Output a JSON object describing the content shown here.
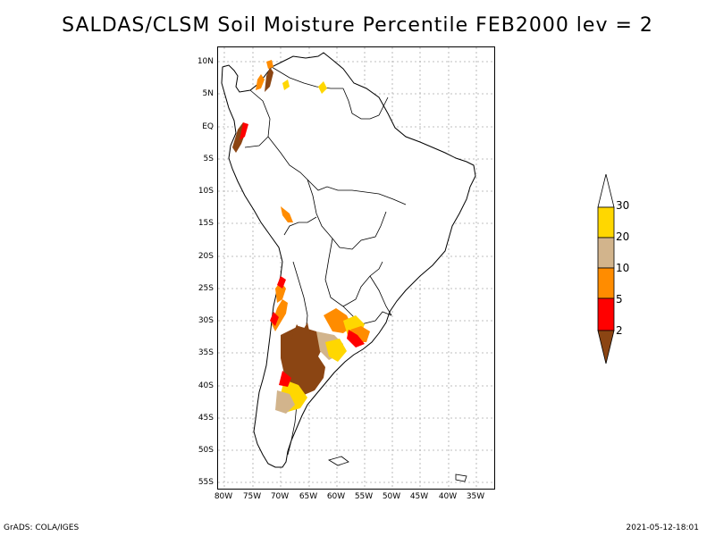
{
  "title": "SALDAS/CLSM Soil Moisture Percentile FEB2000 lev = 2",
  "latitude_labels": [
    "10N",
    "5N",
    "EQ",
    "5S",
    "10S",
    "15S",
    "20S",
    "25S",
    "30S",
    "35S",
    "40S",
    "45S",
    "50S",
    "55S"
  ],
  "longitude_labels": [
    "80W",
    "75W",
    "70W",
    "65W",
    "60W",
    "55W",
    "50W",
    "45W",
    "40W",
    "35W"
  ],
  "legend": {
    "labels": [
      "30",
      "20",
      "10",
      "5",
      "2"
    ],
    "colors": {
      "above_30": "#ffffff",
      "20_30": "#ffd700",
      "10_20": "#d2b48c",
      "5_10": "#ff8c00",
      "2_5": "#ff0000",
      "below_2": "#8b4513"
    }
  },
  "map": {
    "region": "South America",
    "grid": true,
    "coastline_color": "#000000"
  },
  "footer": {
    "left": "GrADS: COLA/IGES",
    "right": "2021-05-12-18:01"
  }
}
